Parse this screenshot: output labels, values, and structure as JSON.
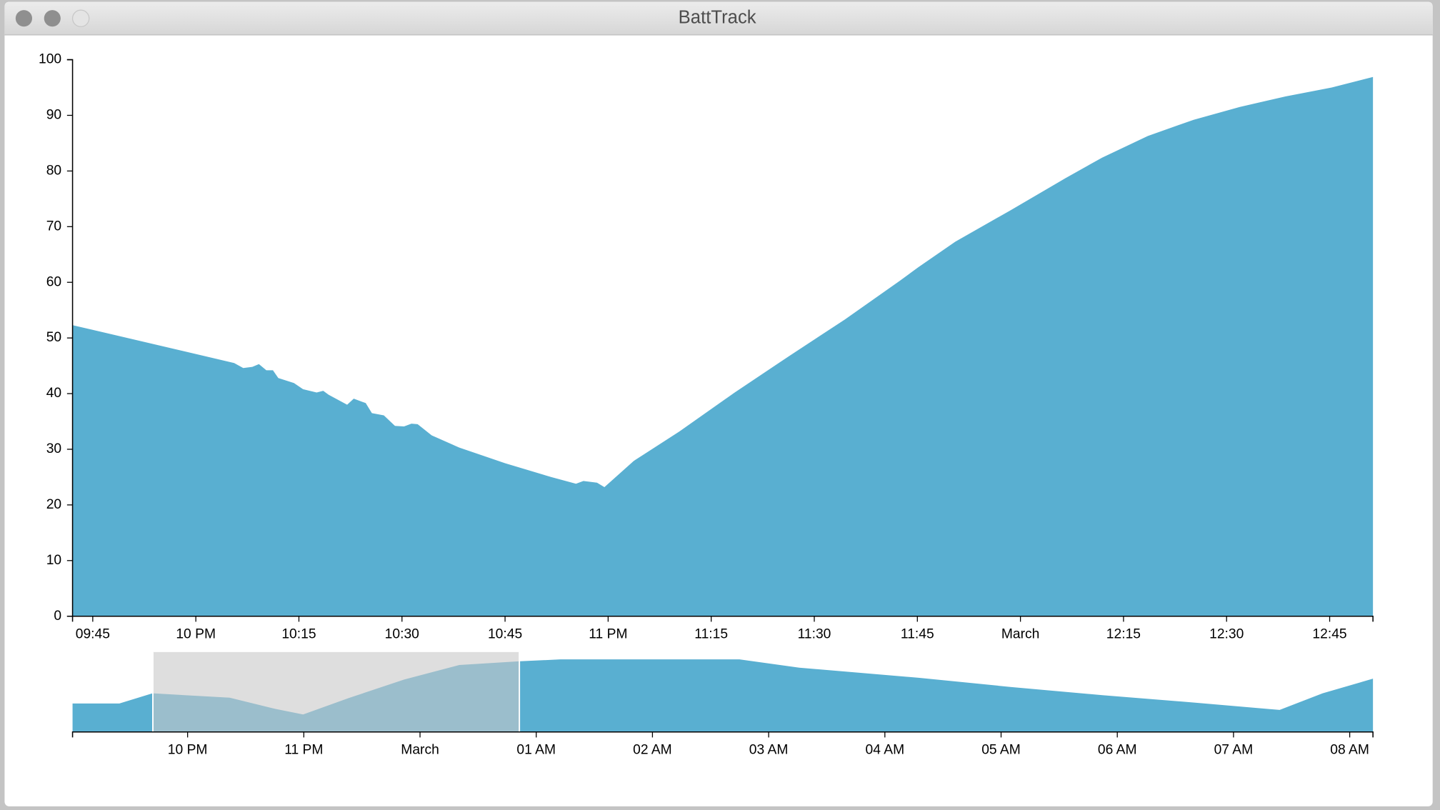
{
  "window": {
    "title": "BattTrack"
  },
  "chart_data": [
    {
      "type": "area",
      "color": "#59afd1",
      "x": [
        21.701,
        22.093,
        22.115,
        22.137,
        22.153,
        22.171,
        22.187,
        22.2,
        22.238,
        22.26,
        22.293,
        22.309,
        22.322,
        22.367,
        22.383,
        22.412,
        22.427,
        22.456,
        22.483,
        22.505,
        22.523,
        22.538,
        22.572,
        22.639,
        22.75,
        22.862,
        22.922,
        22.94,
        22.973,
        22.991,
        23.062,
        23.173,
        23.307,
        23.44,
        23.574,
        23.708,
        23.752,
        23.842,
        23.975,
        24.109,
        24.198,
        24.309,
        24.42,
        24.532,
        24.643,
        24.755,
        24.855
      ],
      "values": [
        52.3,
        45.5,
        44.6,
        44.8,
        45.3,
        44.2,
        44.2,
        42.8,
        41.9,
        40.8,
        40.2,
        40.5,
        39.8,
        38,
        39.1,
        38.3,
        36.5,
        36.1,
        34.2,
        34.1,
        34.6,
        34.5,
        32.5,
        30.3,
        27.5,
        25,
        23.8,
        24.3,
        24,
        23.2,
        27.9,
        33.2,
        40.2,
        46.8,
        53.3,
        60.3,
        62.7,
        67.3,
        72.9,
        78.7,
        82.4,
        86.3,
        89.2,
        91.5,
        93.4,
        95,
        96.9
      ],
      "xlim": [
        21.701,
        24.855
      ],
      "xticks": [
        {
          "value": 21.75,
          "label": "09:45"
        },
        {
          "value": 22,
          "label": "10 PM"
        },
        {
          "value": 22.25,
          "label": "10:15"
        },
        {
          "value": 22.5,
          "label": "10:30"
        },
        {
          "value": 22.75,
          "label": "10:45"
        },
        {
          "value": 23,
          "label": "11 PM"
        },
        {
          "value": 23.25,
          "label": "11:15"
        },
        {
          "value": 23.5,
          "label": "11:30"
        },
        {
          "value": 23.75,
          "label": "11:45"
        },
        {
          "value": 24,
          "label": "March"
        },
        {
          "value": 24.25,
          "label": "12:15"
        },
        {
          "value": 24.5,
          "label": "12:30"
        },
        {
          "value": 24.75,
          "label": "12:45"
        }
      ],
      "ylim": [
        0,
        100
      ],
      "yticks": [
        0,
        10,
        20,
        30,
        40,
        50,
        60,
        70,
        80,
        90,
        100
      ]
    },
    {
      "type": "area",
      "color": "#59afd1",
      "x": [
        21.01,
        21.413,
        21.698,
        22.362,
        22.757,
        22.994,
        23.389,
        23.863,
        24.338,
        24.86,
        25.208,
        26.749,
        27.263,
        28.29,
        29.08,
        29.872,
        30.662,
        31.295,
        31.397,
        31.767,
        32.2
      ],
      "values": [
        38.3,
        38.3,
        51.9,
        46,
        30.9,
        23.5,
        45.7,
        70.4,
        90,
        95,
        97.5,
        97.5,
        86.4,
        72.8,
        60.5,
        49.4,
        39.5,
        30.9,
        29.6,
        51.9,
        71.6
      ],
      "xlim": [
        21.01,
        32.2
      ],
      "xticks": [
        {
          "value": 22,
          "label": "10 PM"
        },
        {
          "value": 23,
          "label": "11 PM"
        },
        {
          "value": 24,
          "label": "March"
        },
        {
          "value": 25,
          "label": "01 AM"
        },
        {
          "value": 26,
          "label": "02 AM"
        },
        {
          "value": 27,
          "label": "03 AM"
        },
        {
          "value": 28,
          "label": "04 AM"
        },
        {
          "value": 29,
          "label": "05 AM"
        },
        {
          "value": 30,
          "label": "06 AM"
        },
        {
          "value": 31,
          "label": "07 AM"
        },
        {
          "value": 32,
          "label": "08 AM"
        }
      ],
      "ylim": [
        0,
        100
      ],
      "brush": [
        21.701,
        24.855
      ]
    }
  ]
}
